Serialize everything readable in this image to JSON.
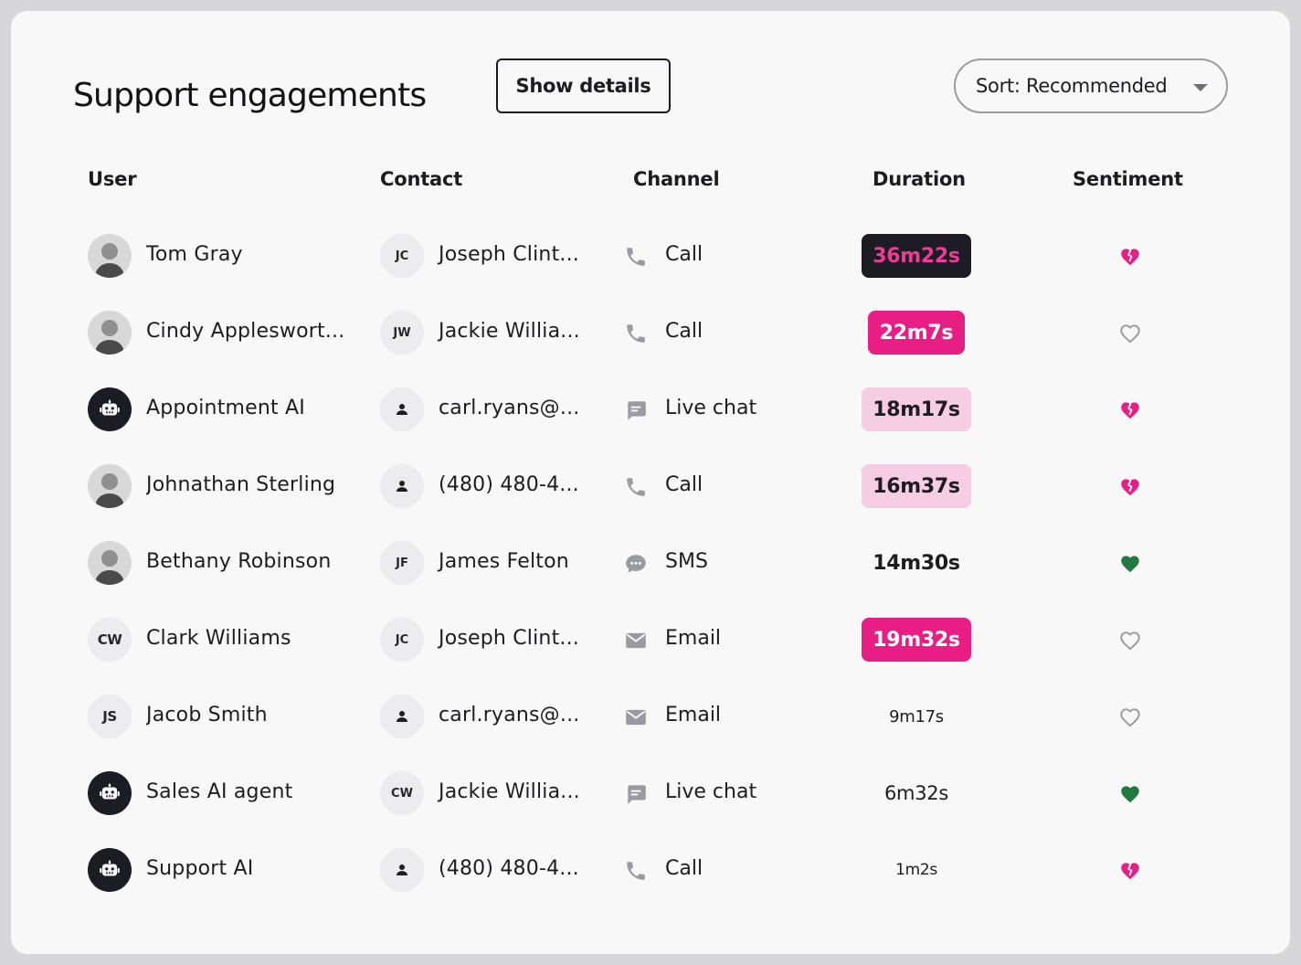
{
  "header": {
    "title": "Support engagements",
    "show_details_label": "Show details",
    "sort_label": "Sort: Recommended"
  },
  "columns": {
    "user": "User",
    "contact": "Contact",
    "channel": "Channel",
    "duration": "Duration",
    "sentiment": "Sentiment"
  },
  "colors": {
    "accent_pink": "#e91e84",
    "light_pink": "#f6cde3",
    "dark_chip": "#1c1c24",
    "positive_green": "#1f7a3e",
    "neutral_outline": "#9a9aa2"
  },
  "rows": [
    {
      "user": "Tom Gray",
      "user_avatar": "photo",
      "contact_initials": "JC",
      "contact": "Joseph Clint...",
      "channel": "Call",
      "channel_icon": "phone-icon",
      "duration": "36m22s",
      "duration_style": "dark",
      "sentiment": "broken-heart-icon"
    },
    {
      "user": "Cindy Appleswort...",
      "user_avatar": "photo",
      "contact_initials": "JW",
      "contact": "Jackie Willia...",
      "channel": "Call",
      "channel_icon": "phone-icon",
      "duration": "22m7s",
      "duration_style": "pink",
      "sentiment": "heart-outline-icon"
    },
    {
      "user": "Appointment AI",
      "user_avatar": "robot-icon",
      "contact_initials": "",
      "contact": "carl.ryans@...",
      "channel": "Live chat",
      "channel_icon": "chat-bubble-icon",
      "duration": "18m17s",
      "duration_style": "light",
      "sentiment": "broken-heart-icon"
    },
    {
      "user": "Johnathan Sterling",
      "user_avatar": "photo",
      "contact_initials": "",
      "contact": "(480) 480-4...",
      "channel": "Call",
      "channel_icon": "phone-icon",
      "duration": "16m37s",
      "duration_style": "light",
      "sentiment": "broken-heart-icon"
    },
    {
      "user": "Bethany Robinson",
      "user_avatar": "photo",
      "contact_initials": "JF",
      "contact": "James Felton",
      "channel": "SMS",
      "channel_icon": "sms-icon",
      "duration": "14m30s",
      "duration_style": "bold",
      "sentiment": "heart-filled-icon"
    },
    {
      "user": "Clark Williams",
      "user_avatar": "CW",
      "contact_initials": "JC",
      "contact": "Joseph Clint...",
      "channel": "Email",
      "channel_icon": "envelope-icon",
      "duration": "19m32s",
      "duration_style": "pink",
      "sentiment": "heart-outline-icon"
    },
    {
      "user": "Jacob Smith",
      "user_avatar": "JS",
      "contact_initials": "",
      "contact": "carl.ryans@...",
      "channel": "Email",
      "channel_icon": "envelope-icon",
      "duration": "9m17s",
      "duration_style": "small",
      "sentiment": "heart-outline-icon"
    },
    {
      "user": "Sales AI agent",
      "user_avatar": "robot-icon",
      "contact_initials": "CW",
      "contact": "Jackie Willia...",
      "channel": "Live chat",
      "channel_icon": "chat-bubble-icon",
      "duration": "6m32s",
      "duration_style": "medium",
      "sentiment": "heart-filled-icon"
    },
    {
      "user": "Support AI",
      "user_avatar": "robot-icon",
      "contact_initials": "",
      "contact": "(480) 480-4...",
      "channel": "Call",
      "channel_icon": "phone-icon",
      "duration": "1m2s",
      "duration_style": "tiny",
      "sentiment": "broken-heart-icon"
    }
  ]
}
